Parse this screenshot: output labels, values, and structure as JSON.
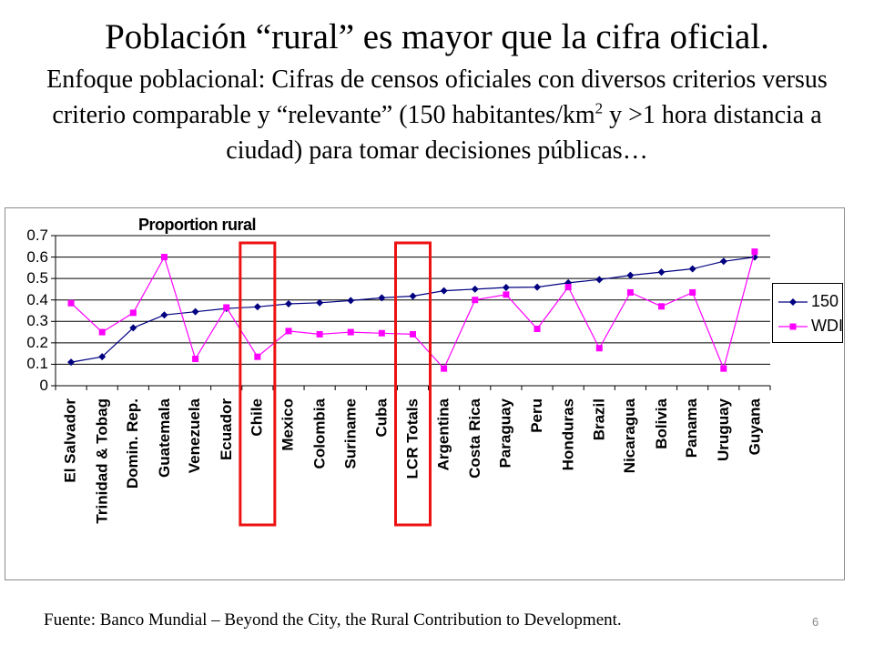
{
  "slide": {
    "title": "Población “rural” es mayor que la cifra oficial.",
    "subtitle_part1": "Enfoque poblacional: Cifras de censos oficiales con diversos criterios versus criterio comparable y “relevante” (150 habitantes/km",
    "subtitle_sup": "2",
    "subtitle_part2": " y >1 hora distancia a ciudad) para tomar decisiones públicas…",
    "source": "Fuente: Banco Mundial – Beyond the City, the Rural Contribution to Development.",
    "page_number": "6"
  },
  "chart_data": {
    "type": "line",
    "title": "Proportion rural",
    "xlabel": "",
    "ylabel": "",
    "ylim": [
      0,
      0.7
    ],
    "yticks": [
      "0",
      "0.1",
      "0.2",
      "0.3",
      "0.4",
      "0.5",
      "0.6",
      "0.7"
    ],
    "grid": "horizontal",
    "legend_position": "right",
    "categories": [
      "El Salvador",
      "Trinidad & Tobag",
      "Domin. Rep.",
      "Guatemala",
      "Venezuela",
      "Ecuador",
      "Chile",
      "Mexico",
      "Colombia",
      "Suriname",
      "Cuba",
      "LCR Totals",
      "Argentina",
      "Costa Rica",
      "Paraguay",
      "Peru",
      "Honduras",
      "Brazil",
      "Nicaragua",
      "Bolivia",
      "Panama",
      "Uruguay",
      "Guyana"
    ],
    "series": [
      {
        "name": "150",
        "color": "#000080",
        "marker": "diamond",
        "values": [
          0.11,
          0.135,
          0.27,
          0.33,
          0.345,
          0.36,
          0.368,
          0.382,
          0.387,
          0.397,
          0.41,
          0.418,
          0.443,
          0.45,
          0.458,
          0.46,
          0.48,
          0.495,
          0.515,
          0.53,
          0.545,
          0.58,
          0.6
        ]
      },
      {
        "name": "WDI",
        "color": "#ff00ff",
        "marker": "square",
        "values": [
          0.385,
          0.25,
          0.34,
          0.6,
          0.125,
          0.365,
          0.135,
          0.255,
          0.24,
          0.25,
          0.245,
          0.24,
          0.08,
          0.4,
          0.425,
          0.265,
          0.46,
          0.175,
          0.435,
          0.37,
          0.435,
          0.08,
          0.625
        ]
      }
    ],
    "highlighted_categories": [
      "Chile",
      "LCR Totals"
    ],
    "highlight_color": "#ee1111"
  }
}
